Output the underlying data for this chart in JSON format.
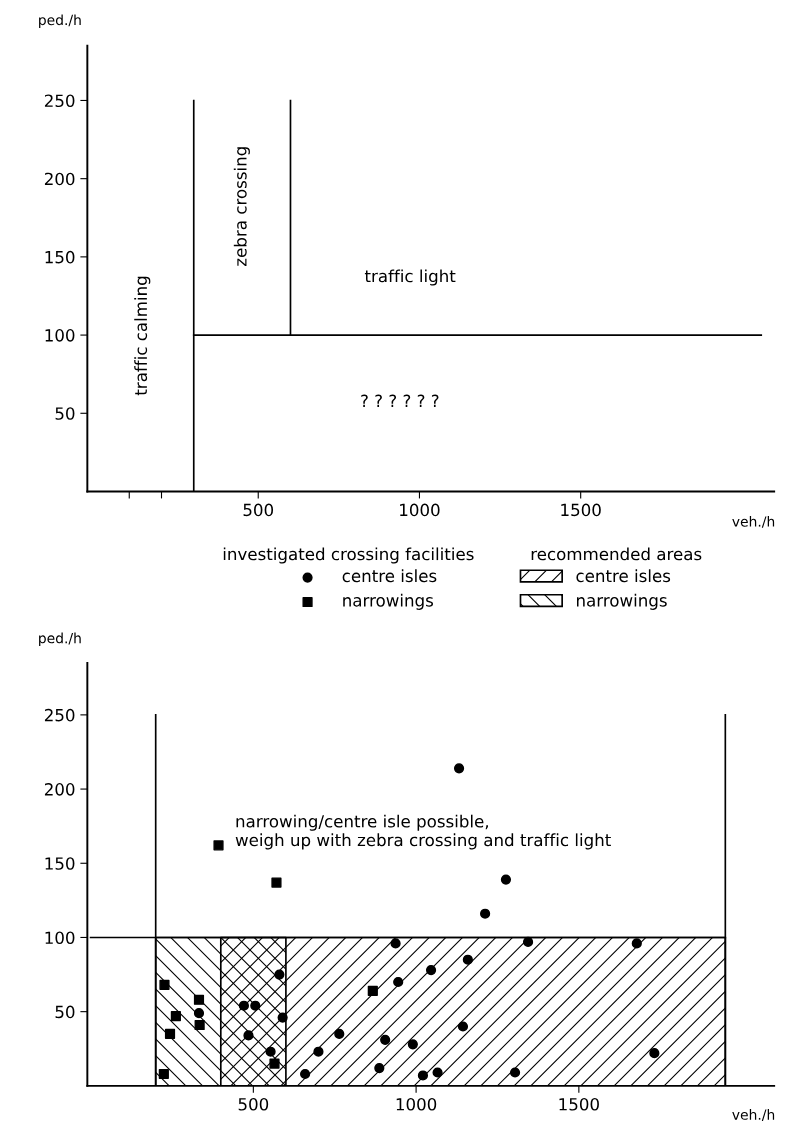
{
  "chart_data": [
    {
      "type": "line",
      "xlabel": "veh./h",
      "ylabel": "ped./h",
      "xlim": [
        -30,
        2100
      ],
      "ylim": [
        0,
        285
      ],
      "xticks": [
        {
          "value": 100,
          "label": null
        },
        {
          "value": 200,
          "label": null
        },
        500,
        1000,
        1500
      ],
      "yticks": [
        50,
        100,
        150,
        200,
        250
      ],
      "grid": false,
      "legend": false,
      "marker": "none",
      "line_style": "solid",
      "series": [
        {
          "color": "#000000",
          "x": [
            300,
            300
          ],
          "values": [
            0,
            250
          ]
        },
        {
          "color": "#000000",
          "x": [
            600,
            600
          ],
          "values": [
            100,
            250
          ]
        },
        {
          "color": "#000000",
          "x": [
            300,
            2060
          ],
          "values": [
            100,
            100
          ]
        }
      ],
      "annotations": [
        "traffic calming",
        "zebra crossing",
        "traffic light",
        "? ? ? ? ? ?"
      ]
    },
    {
      "type": "scatter",
      "xlabel": "veh./h",
      "ylabel": "ped./h",
      "xlim": [
        -10,
        2100
      ],
      "ylim": [
        0,
        285
      ],
      "xticks": [
        500,
        1000,
        1500
      ],
      "yticks": [
        50,
        100,
        150,
        200,
        250
      ],
      "grid": false,
      "legend": "top",
      "series": [
        {
          "name": "centre isles",
          "color": "#000000",
          "marker": "circle",
          "x": [
            1132,
            1276,
            1212,
            1344,
            1678,
            937,
            580,
            333,
            471,
            506,
            590,
            485,
            553,
            1159,
            1046,
            945,
            764,
            700,
            905,
            990,
            1144,
            659,
            887,
            1021,
            1066,
            1304,
            1732
          ],
          "values": [
            214,
            139,
            116,
            97,
            96,
            96,
            75,
            49,
            54,
            54,
            46,
            34,
            23,
            85,
            78,
            70,
            35,
            23,
            31,
            28,
            40,
            8,
            12,
            7,
            9,
            9,
            22
          ]
        },
        {
          "name": "narrowings",
          "color": "#000000",
          "marker": "square",
          "x": [
            393,
            571,
            227,
            333,
            262,
            335,
            244,
            225,
            565,
            867
          ],
          "values": [
            162,
            137,
            68,
            58,
            47,
            41,
            35,
            8,
            15,
            64
          ]
        },
        {
          "name": "centre isles",
          "type": "area",
          "color": "#000000",
          "x": [
            400,
            1950
          ],
          "values": [
            100,
            100
          ]
        },
        {
          "name": "narrowings",
          "type": "area",
          "color": "#000000",
          "x": [
            200,
            600
          ],
          "values": [
            100,
            100
          ]
        },
        {
          "type": "line",
          "color": "#000000",
          "x": [
            200,
            200
          ],
          "values": [
            0,
            250
          ]
        },
        {
          "type": "line",
          "color": "#000000",
          "x": [
            1950,
            1950
          ],
          "values": [
            0,
            250
          ]
        },
        {
          "type": "line",
          "color": "#000000",
          "x": [
            0,
            1950
          ],
          "values": [
            100,
            100
          ]
        }
      ],
      "annotations": [
        "narrowing/centre isle possible,\nweigh up with zebra crossing and traffic light",
        "investigated crossing facilities",
        "recommended areas"
      ]
    }
  ]
}
